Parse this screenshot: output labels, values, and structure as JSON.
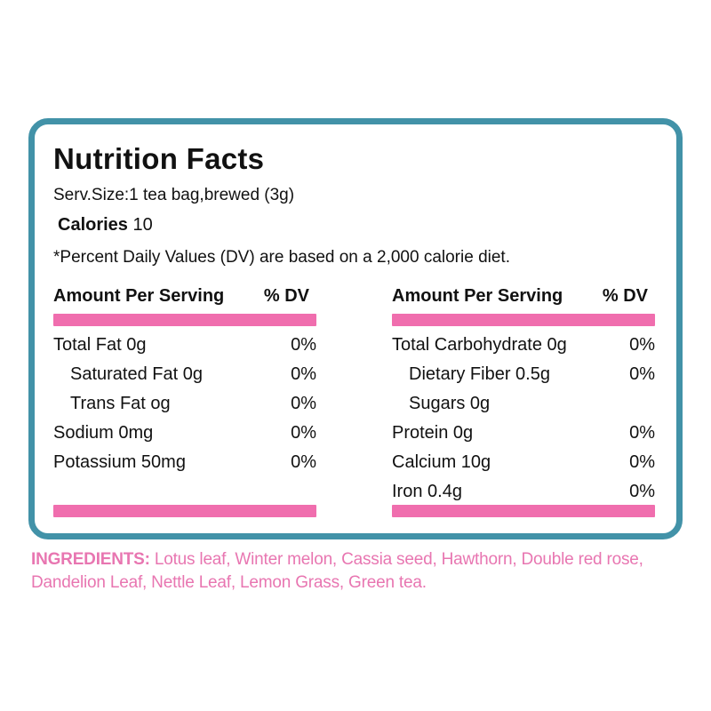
{
  "label": {
    "title": "Nutrition Facts",
    "serving": "Serv.Size:1 tea bag,brewed (3g)",
    "calories_label": "Calories",
    "calories_value": "10",
    "dv_note": "*Percent Daily Values (DV) are based on a 2,000 calorie diet.",
    "col_header_amount": "Amount Per Serving",
    "col_header_dv": "% DV",
    "columns": [
      {
        "rows": [
          {
            "name": "Total Fat 0g",
            "dv": "0%"
          },
          {
            "name": "Saturated Fat 0g",
            "dv": "0%"
          },
          {
            "name": "Trans Fat og",
            "dv": "0%"
          },
          {
            "name": "Sodium 0mg",
            "dv": "0%"
          },
          {
            "name": "Potassium 50mg",
            "dv": "0%"
          }
        ]
      },
      {
        "rows": [
          {
            "name": "Total Carbohydrate 0g",
            "dv": "0%"
          },
          {
            "name": "Dietary Fiber 0.5g",
            "dv": "0%"
          },
          {
            "name": "Sugars 0g",
            "dv": ""
          },
          {
            "name": "Protein 0g",
            "dv": "0%"
          },
          {
            "name": "Calcium 10g",
            "dv": "0%"
          },
          {
            "name": "Iron 0.4g",
            "dv": "0%"
          }
        ]
      }
    ]
  },
  "ingredients": {
    "label": "INGREDIENTS:",
    "text": " Lotus leaf, Winter melon, Cassia seed, Hawthorn, Double red rose, Dandelion Leaf, Nettle Leaf, Lemon Grass, Green tea."
  },
  "colors": {
    "border_teal": "#4292A8",
    "bar_pink": "#F06EAE",
    "ingredients_pink": "#E876B1",
    "text_dark": "#111111"
  }
}
